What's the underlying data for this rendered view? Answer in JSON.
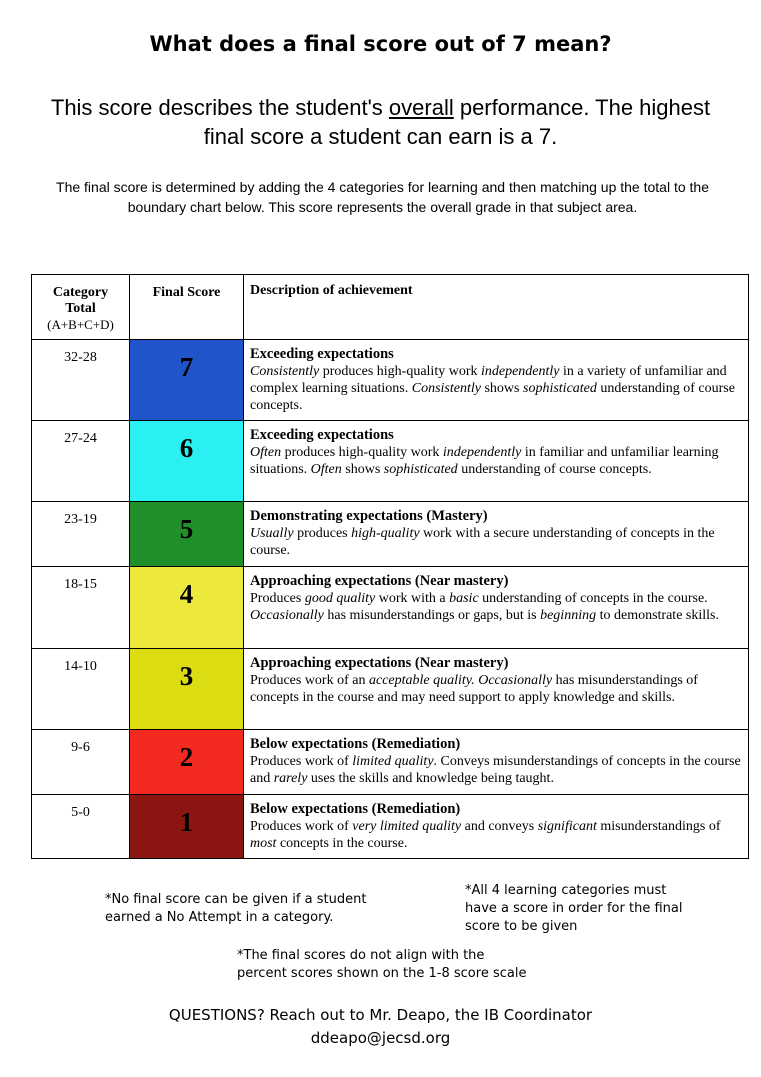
{
  "title": "What does a final score out of 7 mean?",
  "subtitle": [
    {
      "text": "This score describes the student's "
    },
    {
      "text": "overall",
      "underline": true
    },
    {
      "text": " performance. The highest final score a student can earn is a 7."
    }
  ],
  "intro": "The final score is determined by adding the 4 categories for learning and then matching up the total to the boundary chart below.  This score represents the overall grade in that subject area.",
  "table": {
    "header": {
      "category_total": "Category Total",
      "category_formula": "(A+B+C+D)",
      "final_score": "Final Score",
      "description": "Description of achievement"
    },
    "rows": [
      {
        "total": "32-28",
        "score": 7,
        "color": "#1f55c9",
        "heading": "Exceeding expectations",
        "description": [
          {
            "text": "Consistently",
            "em": true
          },
          {
            "text": " produces high-quality work "
          },
          {
            "text": "independently",
            "em": true
          },
          {
            "text": " in a variety of unfamiliar and complex learning situations. "
          },
          {
            "text": "Consistently",
            "em": true
          },
          {
            "text": " shows "
          },
          {
            "text": "sophisticated",
            "em": true
          },
          {
            "text": " understanding of course concepts."
          }
        ]
      },
      {
        "total": "27-24",
        "score": 6,
        "color": "#2af0f2",
        "heading": "Exceeding expectations",
        "description": [
          {
            "text": "Often",
            "em": true
          },
          {
            "text": " produces high-quality work "
          },
          {
            "text": "independently",
            "em": true
          },
          {
            "text": " in familiar and unfamiliar learning situations. "
          },
          {
            "text": "Often",
            "em": true
          },
          {
            "text": " shows "
          },
          {
            "text": "sophisticated",
            "em": true
          },
          {
            "text": " understanding of course concepts."
          }
        ]
      },
      {
        "total": "23-19",
        "score": 5,
        "color": "#21902b",
        "heading": "Demonstrating expectations (Mastery)",
        "description": [
          {
            "text": "Usually",
            "em": true
          },
          {
            "text": " produces "
          },
          {
            "text": "high-quality",
            "em": true
          },
          {
            "text": " work with a secure understanding of concepts in the course."
          }
        ]
      },
      {
        "total": "18-15",
        "score": 4,
        "color": "#ece83c",
        "heading": "Approaching expectations (Near mastery)",
        "description": [
          {
            "text": "Produces "
          },
          {
            "text": "good quality",
            "em": true
          },
          {
            "text": " work with a "
          },
          {
            "text": "basic",
            "em": true
          },
          {
            "text": " understanding of concepts in the course. "
          },
          {
            "text": "Occasionally",
            "em": true
          },
          {
            "text": " has misunderstandings or gaps, but is "
          },
          {
            "text": "beginning",
            "em": true
          },
          {
            "text": " to demonstrate skills."
          }
        ]
      },
      {
        "total": "14-10",
        "score": 3,
        "color": "#dcdc12",
        "heading": "Approaching expectations (Near mastery)",
        "description": [
          {
            "text": "Produces work of an "
          },
          {
            "text": "acceptable quality.",
            "em": true
          },
          {
            "text": " "
          },
          {
            "text": "Occasionally",
            "em": true
          },
          {
            "text": " has misunderstandings of concepts in the course and may need support to apply knowledge and skills."
          }
        ]
      },
      {
        "total": "9-6",
        "score": 2,
        "color": "#f22a20",
        "heading": "Below expectations (Remediation)",
        "description": [
          {
            "text": "Produces work of "
          },
          {
            "text": "limited quality",
            "em": true
          },
          {
            "text": ". Conveys misunderstandings of concepts in the course and "
          },
          {
            "text": "rarely",
            "em": true
          },
          {
            "text": " uses the skills and knowledge being taught."
          }
        ]
      },
      {
        "total": "5-0",
        "score": 1,
        "color": "#8b1511",
        "heading": "Below expectations (Remediation)",
        "description": [
          {
            "text": "Produces work of "
          },
          {
            "text": "very limited quality",
            "em": true
          },
          {
            "text": " and conveys "
          },
          {
            "text": "significant",
            "em": true
          },
          {
            "text": " misunderstandings of "
          },
          {
            "text": "most",
            "em": true
          },
          {
            "text": " concepts in the course."
          }
        ]
      }
    ]
  },
  "notes": {
    "left": "*No final score can be given if a student earned a No Attempt in a category.",
    "right": "*All 4 learning categories must have a score in order for the final score to be given",
    "center": "*The final scores do not align with the percent scores shown on the 1-8 score scale"
  },
  "footer": {
    "questions": "QUESTIONS?   Reach out to Mr. Deapo, the IB Coordinator",
    "email": "ddeapo@jecsd.org"
  }
}
